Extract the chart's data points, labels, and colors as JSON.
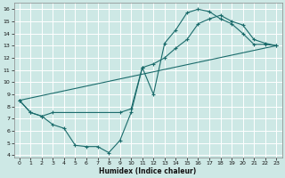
{
  "xlabel": "Humidex (Indice chaleur)",
  "bg_color": "#cde8e5",
  "grid_color": "#b0d4d0",
  "line_color": "#1a6b6b",
  "xlim": [
    -0.5,
    23.5
  ],
  "ylim": [
    3.8,
    16.5
  ],
  "xticks": [
    0,
    1,
    2,
    3,
    4,
    5,
    6,
    7,
    8,
    9,
    10,
    11,
    12,
    13,
    14,
    15,
    16,
    17,
    18,
    19,
    20,
    21,
    22,
    23
  ],
  "yticks": [
    4,
    5,
    6,
    7,
    8,
    9,
    10,
    11,
    12,
    13,
    14,
    15,
    16
  ],
  "line1_x": [
    0,
    1,
    2,
    3,
    4,
    5,
    6,
    7,
    8,
    9,
    10,
    11,
    12,
    13,
    14,
    15,
    16,
    17,
    18,
    19,
    20,
    21,
    22,
    23
  ],
  "line1_y": [
    8.5,
    7.5,
    7.2,
    6.5,
    6.2,
    4.8,
    4.7,
    4.7,
    4.2,
    5.2,
    7.5,
    11.2,
    9.0,
    13.2,
    14.3,
    15.7,
    16.0,
    15.8,
    15.2,
    14.8,
    14.0,
    13.1,
    13.1,
    13.0
  ],
  "line2_x": [
    0,
    1,
    2,
    3,
    9,
    10,
    11,
    12,
    13,
    14,
    15,
    16,
    17,
    18,
    19,
    20,
    21,
    22,
    23
  ],
  "line2_y": [
    8.5,
    7.5,
    7.2,
    7.5,
    7.5,
    7.8,
    11.2,
    11.5,
    12.0,
    12.8,
    13.5,
    14.8,
    15.2,
    15.5,
    15.0,
    14.7,
    13.5,
    13.2,
    13.0
  ],
  "line3_x": [
    0,
    23
  ],
  "line3_y": [
    8.5,
    13.0
  ]
}
